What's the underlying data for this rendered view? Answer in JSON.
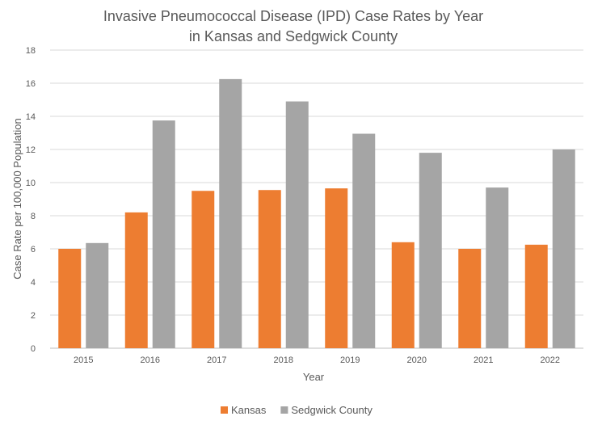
{
  "chart_data": {
    "type": "bar",
    "title": [
      "Invasive Pneumococcal Disease (IPD) Case Rates by Year",
      "in Kansas and Sedgwick County"
    ],
    "xlabel": "Year",
    "ylabel": "Case Rate per 100,000 Population",
    "ylim": [
      0,
      18
    ],
    "yticks": [
      0,
      2,
      4,
      6,
      8,
      10,
      12,
      14,
      16,
      18
    ],
    "grid": true,
    "legend_position": "bottom",
    "categories": [
      "2015",
      "2016",
      "2017",
      "2018",
      "2019",
      "2020",
      "2021",
      "2022"
    ],
    "series": [
      {
        "name": "Kansas",
        "color": "#ED7D31",
        "values": [
          6.0,
          8.2,
          9.5,
          9.55,
          9.65,
          6.4,
          6.0,
          6.25
        ]
      },
      {
        "name": "Sedgwick County",
        "color": "#A5A5A5",
        "values": [
          6.35,
          13.75,
          16.25,
          14.9,
          12.95,
          11.8,
          9.7,
          12.0
        ]
      }
    ]
  }
}
